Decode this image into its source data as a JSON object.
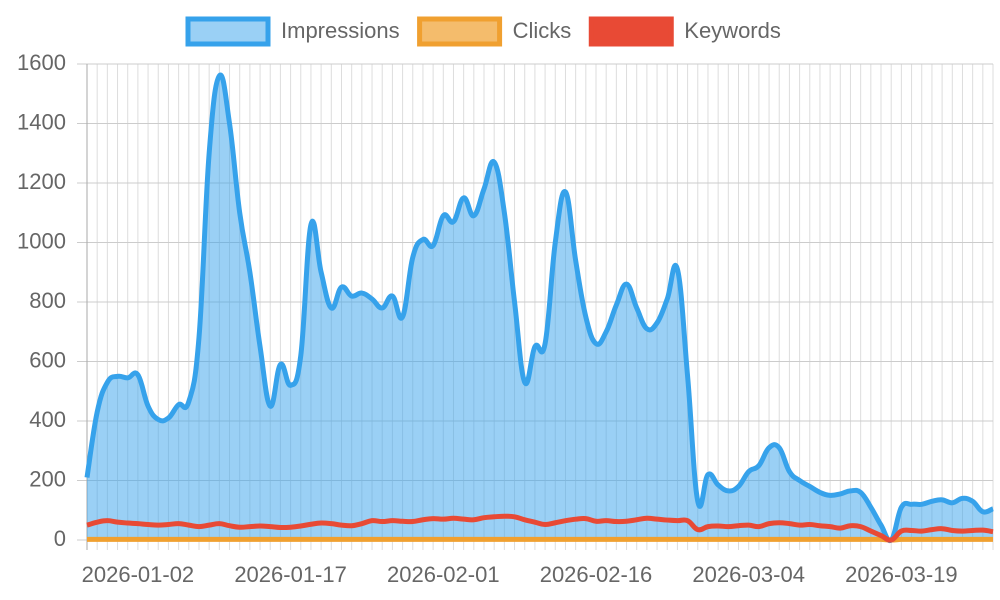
{
  "chart_data": {
    "type": "line",
    "categories": [
      null,
      null,
      null,
      null,
      null,
      "2026-01-02",
      null,
      null,
      null,
      null,
      null,
      null,
      null,
      null,
      null,
      null,
      null,
      null,
      null,
      null,
      "2026-01-17",
      null,
      null,
      null,
      null,
      null,
      null,
      null,
      null,
      null,
      null,
      null,
      null,
      null,
      null,
      "2026-02-01",
      null,
      null,
      null,
      null,
      null,
      null,
      null,
      null,
      null,
      null,
      null,
      null,
      null,
      null,
      "2026-02-16",
      null,
      null,
      null,
      null,
      null,
      null,
      null,
      null,
      null,
      null,
      null,
      null,
      null,
      null,
      "2026-03-04",
      null,
      null,
      null,
      null,
      null,
      null,
      null,
      null,
      null,
      null,
      null,
      null,
      null,
      null,
      "2026-03-19",
      null,
      null,
      null,
      null,
      null,
      null,
      null,
      null,
      null
    ],
    "series": [
      {
        "name": "Impressions",
        "color": "#36a2eb",
        "fill_color": "rgba(54,162,235,0.5)",
        "filled": true,
        "values": [
          210,
          430,
          530,
          550,
          545,
          555,
          450,
          405,
          410,
          455,
          465,
          680,
          1300,
          1560,
          1400,
          1100,
          900,
          650,
          450,
          590,
          520,
          620,
          1060,
          900,
          780,
          850,
          820,
          830,
          810,
          780,
          820,
          750,
          950,
          1010,
          990,
          1090,
          1070,
          1150,
          1090,
          1180,
          1270,
          1100,
          800,
          530,
          650,
          660,
          1000,
          1170,
          940,
          750,
          660,
          700,
          790,
          860,
          780,
          710,
          730,
          810,
          910,
          550,
          130,
          220,
          185,
          165,
          180,
          230,
          250,
          310,
          310,
          230,
          200,
          180,
          160,
          150,
          155,
          165,
          160,
          110,
          50,
          0,
          110,
          120,
          120,
          130,
          135,
          125,
          140,
          130,
          95,
          105
        ]
      },
      {
        "name": "Clicks",
        "color": "#f0a030",
        "fill_color": "#f4bc6c",
        "filled": false,
        "values": [
          2,
          2,
          2,
          2,
          2,
          2,
          2,
          2,
          2,
          2,
          2,
          2,
          2,
          2,
          2,
          2,
          2,
          2,
          2,
          2,
          2,
          2,
          2,
          2,
          2,
          2,
          2,
          2,
          2,
          2,
          2,
          2,
          2,
          2,
          2,
          2,
          2,
          2,
          2,
          2,
          2,
          2,
          2,
          2,
          2,
          2,
          2,
          2,
          2,
          2,
          2,
          2,
          2,
          2,
          2,
          2,
          2,
          2,
          2,
          2,
          2,
          2,
          2,
          2,
          2,
          2,
          2,
          2,
          2,
          2,
          2,
          2,
          2,
          2,
          2,
          2,
          2,
          2,
          2,
          0,
          2,
          2,
          2,
          2,
          2,
          2,
          2,
          2,
          2,
          2
        ]
      },
      {
        "name": "Keywords",
        "color": "#e84a35",
        "fill_color": "#e84a35",
        "filled": false,
        "values": [
          50,
          60,
          65,
          60,
          57,
          55,
          52,
          50,
          52,
          55,
          50,
          45,
          50,
          55,
          48,
          43,
          45,
          47,
          45,
          42,
          43,
          47,
          53,
          57,
          55,
          50,
          48,
          55,
          65,
          62,
          65,
          63,
          62,
          68,
          72,
          70,
          73,
          70,
          68,
          75,
          78,
          80,
          78,
          68,
          60,
          52,
          58,
          65,
          70,
          72,
          63,
          65,
          62,
          63,
          68,
          73,
          70,
          67,
          65,
          65,
          35,
          45,
          47,
          45,
          48,
          50,
          45,
          55,
          58,
          55,
          50,
          52,
          48,
          45,
          40,
          48,
          45,
          30,
          15,
          0,
          30,
          32,
          30,
          35,
          38,
          32,
          30,
          32,
          33,
          28
        ]
      }
    ],
    "ylim": [
      0,
      1600
    ],
    "yticks": [
      0,
      200,
      400,
      600,
      800,
      1000,
      1200,
      1400,
      1600
    ],
    "grid": true,
    "legend": "top"
  }
}
